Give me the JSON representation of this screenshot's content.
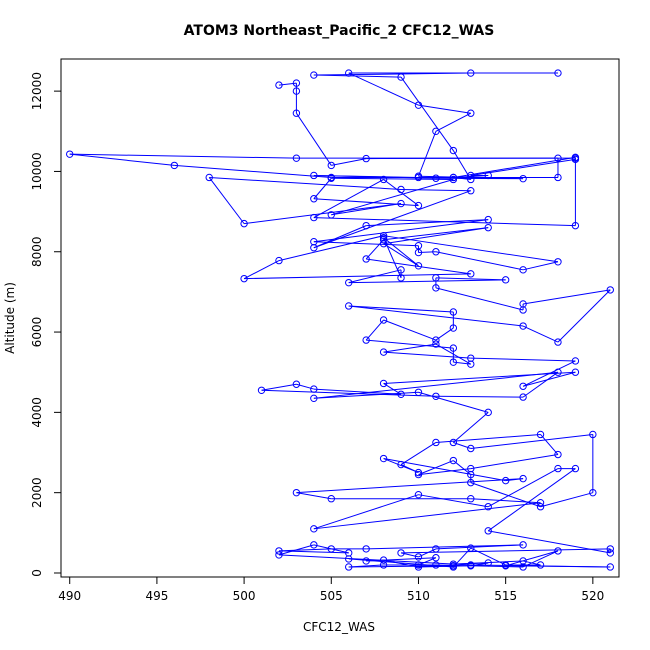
{
  "chart_data": {
    "type": "line",
    "title": "ATOM3 Northeast_Pacific_2 CFC12_WAS",
    "xlabel": "CFC12_WAS",
    "ylabel": "Altitude (m)",
    "xlim": [
      489.5,
      521.5
    ],
    "ylim": [
      -100,
      12800
    ],
    "x_ticks": [
      490,
      495,
      500,
      505,
      510,
      515,
      520
    ],
    "y_ticks": [
      0,
      2000,
      4000,
      6000,
      8000,
      10000,
      12000
    ],
    "grid": false,
    "marker": "open-circle",
    "series": [
      {
        "color": "#0000ff",
        "points": [
          [
            502,
            12150
          ],
          [
            503,
            12200
          ],
          [
            503,
            12000
          ],
          [
            503,
            11450
          ],
          [
            505,
            10150
          ],
          [
            507,
            10320
          ],
          [
            519,
            10330
          ],
          [
            519,
            10300
          ],
          [
            513,
            9900
          ],
          [
            514,
            9900
          ],
          [
            512,
            9850
          ],
          [
            505,
            9850
          ],
          [
            496,
            10150
          ],
          [
            490,
            10430
          ],
          [
            503,
            10330
          ],
          [
            518,
            10330
          ],
          [
            518,
            9850
          ],
          [
            510,
            9850
          ],
          [
            504,
            9900
          ],
          [
            511,
            9830
          ],
          [
            516,
            9820
          ],
          [
            510,
            9880
          ],
          [
            511,
            11000
          ],
          [
            513,
            11450
          ],
          [
            510,
            11650
          ],
          [
            506,
            12450
          ],
          [
            518,
            12450
          ],
          [
            513,
            12450
          ],
          [
            504,
            12400
          ],
          [
            509,
            12350
          ],
          [
            512,
            10520
          ],
          [
            513,
            9800
          ],
          [
            512,
            9850
          ],
          [
            519,
            10350
          ],
          [
            519,
            8650
          ],
          [
            504,
            8850
          ],
          [
            508,
            9800
          ],
          [
            510,
            9150
          ],
          [
            504,
            9320
          ],
          [
            505,
            9830
          ],
          [
            512,
            9800
          ],
          [
            505,
            8920
          ],
          [
            509,
            9200
          ],
          [
            500,
            8700
          ],
          [
            498,
            9850
          ],
          [
            509,
            9550
          ],
          [
            513,
            9520
          ],
          [
            504,
            8100
          ],
          [
            507,
            8650
          ],
          [
            514,
            8800
          ],
          [
            504,
            8250
          ],
          [
            510,
            8150
          ],
          [
            510,
            7980
          ],
          [
            511,
            8000
          ],
          [
            516,
            7550
          ],
          [
            518,
            7750
          ],
          [
            508,
            8400
          ],
          [
            502,
            7780
          ],
          [
            500,
            7330
          ],
          [
            513,
            7450
          ],
          [
            507,
            7820
          ],
          [
            508,
            8300
          ],
          [
            514,
            8600
          ],
          [
            508,
            8200
          ],
          [
            510,
            7650
          ],
          [
            508,
            8350
          ],
          [
            509,
            7350
          ],
          [
            509,
            7550
          ],
          [
            506,
            7230
          ],
          [
            515,
            7300
          ],
          [
            511,
            7350
          ],
          [
            511,
            7100
          ],
          [
            516,
            6550
          ],
          [
            516,
            6700
          ],
          [
            521,
            7050
          ],
          [
            518,
            5750
          ],
          [
            516,
            6150
          ],
          [
            506,
            6650
          ],
          [
            512,
            6500
          ],
          [
            512,
            6100
          ],
          [
            511,
            5800
          ],
          [
            508,
            6300
          ],
          [
            507,
            5800
          ],
          [
            512,
            5600
          ],
          [
            512,
            5250
          ],
          [
            513,
            5200
          ],
          [
            511,
            5700
          ],
          [
            508,
            5500
          ],
          [
            513,
            5350
          ],
          [
            519,
            5280
          ],
          [
            516,
            4650
          ],
          [
            519,
            5000
          ],
          [
            508,
            4720
          ],
          [
            509,
            4450
          ],
          [
            504,
            4580
          ],
          [
            503,
            4700
          ],
          [
            501,
            4550
          ],
          [
            511,
            4400
          ],
          [
            516,
            4380
          ],
          [
            518,
            5000
          ],
          [
            504,
            4350
          ],
          [
            510,
            4500
          ],
          [
            514,
            4000
          ],
          [
            512,
            3250
          ],
          [
            513,
            3100
          ],
          [
            520,
            3450
          ],
          [
            520,
            2000
          ],
          [
            517,
            1650
          ],
          [
            513,
            2250
          ],
          [
            513,
            2450
          ],
          [
            512,
            2800
          ],
          [
            510,
            2450
          ],
          [
            513,
            2600
          ],
          [
            518,
            2950
          ],
          [
            517,
            3450
          ],
          [
            511,
            3250
          ],
          [
            509,
            2700
          ],
          [
            510,
            2500
          ],
          [
            508,
            2850
          ],
          [
            515,
            2300
          ],
          [
            516,
            2350
          ],
          [
            503,
            2000
          ],
          [
            505,
            1850
          ],
          [
            513,
            1850
          ],
          [
            517,
            1750
          ],
          [
            504,
            1100
          ],
          [
            510,
            1950
          ],
          [
            514,
            1650
          ],
          [
            518,
            2600
          ],
          [
            519,
            2600
          ],
          [
            514,
            1050
          ],
          [
            521,
            500
          ],
          [
            521,
            600
          ],
          [
            509,
            500
          ],
          [
            510,
            400
          ],
          [
            511,
            600
          ],
          [
            516,
            700
          ],
          [
            507,
            600
          ],
          [
            505,
            600
          ],
          [
            502,
            550
          ],
          [
            506,
            500
          ],
          [
            504,
            700
          ],
          [
            502,
            450
          ],
          [
            513,
            200
          ],
          [
            521,
            150
          ],
          [
            515,
            180
          ],
          [
            518,
            550
          ],
          [
            516,
            150
          ],
          [
            511,
            200
          ],
          [
            508,
            200
          ],
          [
            506,
            150
          ],
          [
            512,
            180
          ],
          [
            510,
            200
          ],
          [
            511,
            380
          ],
          [
            507,
            300
          ],
          [
            508,
            320
          ],
          [
            510,
            150
          ],
          [
            513,
            180
          ],
          [
            514,
            250
          ],
          [
            512,
            220
          ],
          [
            516,
            300
          ],
          [
            517,
            200
          ],
          [
            515,
            200
          ],
          [
            513,
            620
          ],
          [
            512,
            150
          ],
          [
            506,
            350
          ]
        ]
      }
    ]
  }
}
